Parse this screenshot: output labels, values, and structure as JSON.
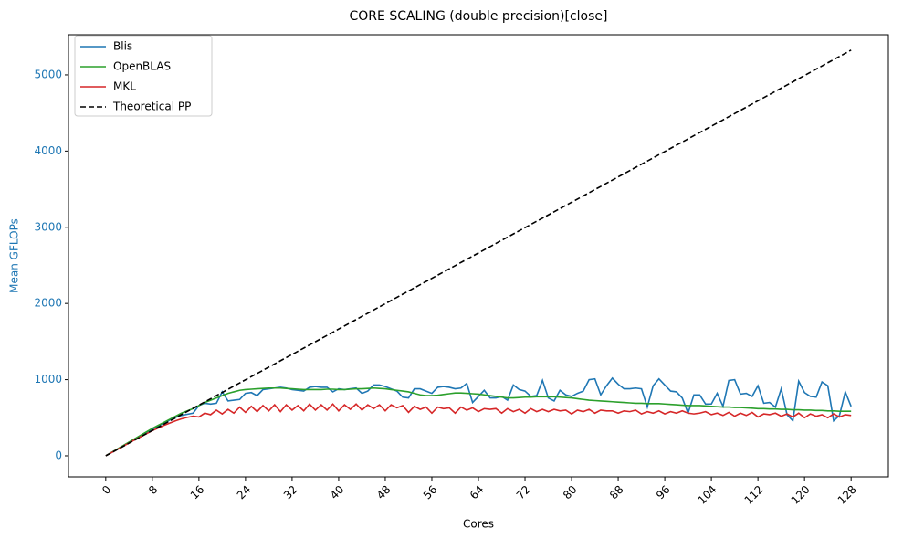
{
  "chart_data": {
    "type": "line",
    "title": "CORE SCALING (double precision)[close]",
    "x_label": "Cores",
    "y_label": "Mean GFLOPs",
    "y_label_color": "#1f77b4",
    "x": [
      0,
      1,
      2,
      3,
      4,
      5,
      6,
      7,
      8,
      9,
      10,
      11,
      12,
      13,
      14,
      15,
      16,
      17,
      18,
      19,
      20,
      21,
      22,
      23,
      24,
      25,
      26,
      27,
      28,
      29,
      30,
      31,
      32,
      33,
      34,
      35,
      36,
      37,
      38,
      39,
      40,
      41,
      42,
      43,
      44,
      45,
      46,
      47,
      48,
      49,
      50,
      51,
      52,
      53,
      54,
      55,
      56,
      57,
      58,
      59,
      60,
      61,
      62,
      63,
      64,
      65,
      66,
      67,
      68,
      69,
      70,
      71,
      72,
      73,
      74,
      75,
      76,
      77,
      78,
      79,
      80,
      81,
      82,
      83,
      84,
      85,
      86,
      87,
      88,
      89,
      90,
      91,
      92,
      93,
      94,
      95,
      96,
      97,
      98,
      99,
      100,
      101,
      102,
      103,
      104,
      105,
      106,
      107,
      108,
      109,
      110,
      111,
      112,
      113,
      114,
      115,
      116,
      117,
      118,
      119,
      120,
      121,
      122,
      123,
      124,
      125,
      126,
      127,
      128
    ],
    "series": [
      {
        "name": "Blis",
        "color": "#1f77b4",
        "values": [
          0,
          44,
          88,
          132,
          176,
          220,
          264,
          308,
          350,
          390,
          430,
          470,
          505,
          530,
          545,
          560,
          660,
          690,
          680,
          690,
          840,
          720,
          730,
          740,
          820,
          830,
          790,
          870,
          880,
          890,
          900,
          890,
          870,
          860,
          850,
          900,
          910,
          900,
          900,
          840,
          880,
          870,
          880,
          890,
          820,
          850,
          930,
          930,
          910,
          880,
          850,
          770,
          760,
          880,
          880,
          850,
          820,
          900,
          910,
          900,
          880,
          890,
          950,
          700,
          780,
          860,
          760,
          760,
          780,
          730,
          930,
          870,
          850,
          780,
          790,
          990,
          760,
          720,
          860,
          800,
          780,
          820,
          850,
          1000,
          1010,
          800,
          920,
          1020,
          940,
          880,
          880,
          890,
          880,
          640,
          920,
          1010,
          930,
          850,
          840,
          760,
          560,
          800,
          800,
          680,
          680,
          820,
          650,
          990,
          1000,
          810,
          820,
          780,
          920,
          690,
          700,
          640,
          880,
          540,
          460,
          980,
          830,
          780,
          770,
          970,
          920,
          460,
          530,
          840,
          650
        ]
      },
      {
        "name": "OpenBLAS",
        "color": "#2ca02c",
        "values": [
          0,
          45,
          90,
          135,
          180,
          225,
          270,
          315,
          360,
          400,
          440,
          480,
          520,
          560,
          590,
          620,
          660,
          700,
          730,
          760,
          790,
          820,
          840,
          860,
          870,
          875,
          880,
          885,
          890,
          890,
          890,
          885,
          880,
          875,
          870,
          870,
          870,
          870,
          875,
          875,
          870,
          870,
          875,
          880,
          880,
          885,
          890,
          885,
          880,
          870,
          860,
          850,
          840,
          820,
          800,
          790,
          790,
          795,
          805,
          815,
          825,
          825,
          820,
          815,
          810,
          800,
          790,
          780,
          770,
          760,
          760,
          765,
          770,
          770,
          775,
          775,
          775,
          775,
          770,
          765,
          760,
          750,
          740,
          730,
          725,
          720,
          715,
          710,
          705,
          700,
          695,
          690,
          690,
          685,
          685,
          685,
          680,
          675,
          670,
          665,
          660,
          660,
          660,
          655,
          650,
          645,
          640,
          640,
          635,
          635,
          630,
          625,
          620,
          620,
          615,
          615,
          610,
          610,
          605,
          605,
          600,
          600,
          595,
          595,
          590,
          590,
          585,
          585,
          585
        ]
      },
      {
        "name": "MKL",
        "color": "#d62728",
        "values": [
          0,
          42,
          84,
          126,
          168,
          210,
          250,
          290,
          330,
          365,
          400,
          430,
          460,
          485,
          505,
          520,
          510,
          560,
          540,
          600,
          550,
          610,
          560,
          640,
          570,
          650,
          580,
          660,
          590,
          670,
          580,
          670,
          600,
          660,
          590,
          680,
          600,
          670,
          600,
          680,
          590,
          670,
          610,
          680,
          600,
          670,
          620,
          670,
          590,
          670,
          630,
          660,
          570,
          650,
          610,
          640,
          560,
          640,
          620,
          630,
          560,
          640,
          600,
          630,
          580,
          620,
          610,
          620,
          560,
          620,
          580,
          610,
          560,
          620,
          580,
          610,
          580,
          610,
          590,
          600,
          550,
          600,
          580,
          610,
          560,
          600,
          590,
          590,
          560,
          590,
          580,
          600,
          550,
          580,
          560,
          590,
          550,
          580,
          560,
          590,
          560,
          550,
          560,
          580,
          540,
          560,
          530,
          570,
          520,
          560,
          530,
          570,
          510,
          550,
          540,
          560,
          520,
          550,
          510,
          560,
          500,
          550,
          520,
          540,
          500,
          550,
          510,
          540,
          530
        ]
      },
      {
        "name": "Theoretical PP",
        "color": "#000000",
        "dashed": true,
        "x": [
          0,
          128
        ],
        "values": [
          0,
          5325
        ]
      }
    ],
    "xlim": [
      -6.4,
      134.4
    ],
    "ylim": [
      -276,
      5527
    ],
    "xticks": [
      0,
      8,
      16,
      24,
      32,
      40,
      48,
      56,
      64,
      72,
      80,
      88,
      96,
      104,
      112,
      120,
      128
    ],
    "yticks": [
      0,
      1000,
      2000,
      3000,
      4000,
      5000
    ],
    "legend": "upper-left"
  }
}
